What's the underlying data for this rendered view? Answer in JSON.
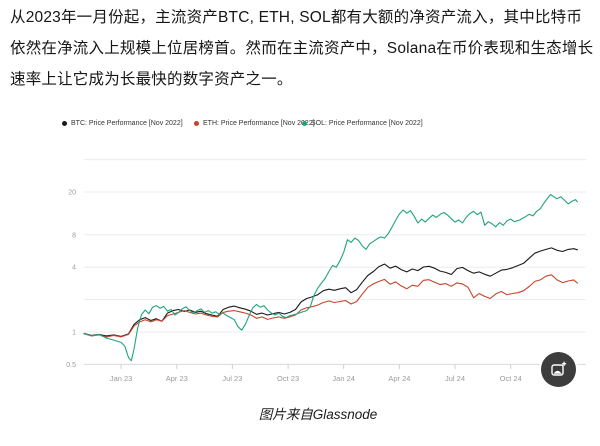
{
  "article": {
    "text": "从2023年一月份起，主流资产BTC, ETH, SOL都有大额的净资产流入，其中比特币依然在净流入上规模上位居榜首。然而在主流资产中，Solana在币价表现和生态增长速率上让它成为长最快的数字资产之一。"
  },
  "caption": {
    "text": "图片来自Glassnode"
  },
  "image_button": {
    "tooltip": "preview image"
  },
  "chart_data": {
    "type": "line",
    "title": "",
    "xlabel": "",
    "ylabel": "",
    "y_scale": "log",
    "ylim": [
      0.45,
      45
    ],
    "grid": true,
    "legend_position": "top",
    "x_unit": "months since Nov 2022",
    "y_gridlines": [
      40,
      20,
      8,
      4,
      2,
      1,
      0.5
    ],
    "y_ticks": [
      {
        "v": 20,
        "label": "20"
      },
      {
        "v": 8,
        "label": "8"
      },
      {
        "v": 4,
        "label": "4"
      },
      {
        "v": 1,
        "label": "1"
      },
      {
        "v": 0.5,
        "label": "0.5"
      }
    ],
    "x_ticks": [
      {
        "m": 2,
        "label": "Jan 23"
      },
      {
        "m": 5,
        "label": "Apr 23"
      },
      {
        "m": 8,
        "label": "Jul 23"
      },
      {
        "m": 11,
        "label": "Oct 23"
      },
      {
        "m": 14,
        "label": "Jan 24"
      },
      {
        "m": 17,
        "label": "Apr 24"
      },
      {
        "m": 20,
        "label": "Jul 24"
      },
      {
        "m": 23,
        "label": "Oct 24"
      }
    ],
    "series": [
      {
        "id": "btc",
        "legend_label": "BTC: Price Performance [Nov 2022]",
        "color": "#1a1a1a",
        "points": [
          [
            0,
            0.97
          ],
          [
            0.4,
            0.93
          ],
          [
            0.8,
            0.95
          ],
          [
            1.2,
            0.92
          ],
          [
            1.6,
            0.94
          ],
          [
            2,
            0.91
          ],
          [
            2.4,
            0.96
          ],
          [
            2.7,
            1.18
          ],
          [
            3,
            1.3
          ],
          [
            3.3,
            1.36
          ],
          [
            3.6,
            1.28
          ],
          [
            3.9,
            1.33
          ],
          [
            4.2,
            1.26
          ],
          [
            4.5,
            1.5
          ],
          [
            4.8,
            1.58
          ],
          [
            5.1,
            1.62
          ],
          [
            5.4,
            1.55
          ],
          [
            5.7,
            1.6
          ],
          [
            6,
            1.52
          ],
          [
            6.3,
            1.56
          ],
          [
            6.6,
            1.48
          ],
          [
            6.9,
            1.44
          ],
          [
            7.2,
            1.4
          ],
          [
            7.5,
            1.62
          ],
          [
            7.8,
            1.7
          ],
          [
            8.1,
            1.74
          ],
          [
            8.4,
            1.68
          ],
          [
            8.7,
            1.63
          ],
          [
            9,
            1.56
          ],
          [
            9.3,
            1.46
          ],
          [
            9.6,
            1.5
          ],
          [
            9.9,
            1.44
          ],
          [
            10.2,
            1.48
          ],
          [
            10.5,
            1.52
          ],
          [
            10.8,
            1.47
          ],
          [
            11.1,
            1.52
          ],
          [
            11.4,
            1.62
          ],
          [
            11.7,
            1.9
          ],
          [
            12,
            2.05
          ],
          [
            12.3,
            2.12
          ],
          [
            12.6,
            2.22
          ],
          [
            12.9,
            2.42
          ],
          [
            13.2,
            2.5
          ],
          [
            13.5,
            2.44
          ],
          [
            13.8,
            2.52
          ],
          [
            14.1,
            2.58
          ],
          [
            14.4,
            2.32
          ],
          [
            14.7,
            2.48
          ],
          [
            15,
            2.9
          ],
          [
            15.3,
            3.35
          ],
          [
            15.6,
            3.65
          ],
          [
            15.9,
            4.05
          ],
          [
            16.2,
            4.28
          ],
          [
            16.5,
            3.92
          ],
          [
            16.8,
            4.1
          ],
          [
            17.1,
            3.8
          ],
          [
            17.4,
            3.62
          ],
          [
            17.7,
            3.85
          ],
          [
            18,
            3.72
          ],
          [
            18.3,
            4.02
          ],
          [
            18.6,
            4.08
          ],
          [
            18.9,
            3.92
          ],
          [
            19.2,
            3.68
          ],
          [
            19.5,
            3.58
          ],
          [
            19.8,
            3.42
          ],
          [
            20.1,
            3.88
          ],
          [
            20.4,
            3.98
          ],
          [
            20.7,
            3.72
          ],
          [
            21,
            3.52
          ],
          [
            21.3,
            3.62
          ],
          [
            21.6,
            3.44
          ],
          [
            21.9,
            3.3
          ],
          [
            22.2,
            3.52
          ],
          [
            22.5,
            3.76
          ],
          [
            22.8,
            3.82
          ],
          [
            23.1,
            3.95
          ],
          [
            23.4,
            4.15
          ],
          [
            23.7,
            4.35
          ],
          [
            24,
            4.85
          ],
          [
            24.3,
            5.4
          ],
          [
            24.6,
            5.65
          ],
          [
            24.9,
            5.85
          ],
          [
            25.2,
            6.05
          ],
          [
            25.5,
            5.75
          ],
          [
            25.8,
            5.6
          ],
          [
            26.1,
            5.85
          ],
          [
            26.4,
            5.95
          ],
          [
            26.6,
            5.8
          ]
        ]
      },
      {
        "id": "eth",
        "legend_label": "ETH: Price Performance [Nov 2022]",
        "color": "#c7442c",
        "points": [
          [
            0,
            0.97
          ],
          [
            0.4,
            0.92
          ],
          [
            0.8,
            0.94
          ],
          [
            1.2,
            0.9
          ],
          [
            1.6,
            0.93
          ],
          [
            2,
            0.9
          ],
          [
            2.4,
            0.95
          ],
          [
            2.7,
            1.14
          ],
          [
            3,
            1.24
          ],
          [
            3.3,
            1.3
          ],
          [
            3.6,
            1.24
          ],
          [
            3.9,
            1.3
          ],
          [
            4.2,
            1.26
          ],
          [
            4.5,
            1.42
          ],
          [
            4.8,
            1.47
          ],
          [
            5.1,
            1.52
          ],
          [
            5.4,
            1.58
          ],
          [
            5.7,
            1.52
          ],
          [
            6,
            1.47
          ],
          [
            6.3,
            1.5
          ],
          [
            6.6,
            1.44
          ],
          [
            6.9,
            1.4
          ],
          [
            7.2,
            1.38
          ],
          [
            7.5,
            1.52
          ],
          [
            7.8,
            1.56
          ],
          [
            8.1,
            1.58
          ],
          [
            8.4,
            1.54
          ],
          [
            8.7,
            1.5
          ],
          [
            9,
            1.44
          ],
          [
            9.3,
            1.34
          ],
          [
            9.6,
            1.38
          ],
          [
            9.9,
            1.31
          ],
          [
            10.2,
            1.35
          ],
          [
            10.5,
            1.38
          ],
          [
            10.8,
            1.34
          ],
          [
            11.1,
            1.38
          ],
          [
            11.4,
            1.44
          ],
          [
            11.7,
            1.6
          ],
          [
            12,
            1.68
          ],
          [
            12.3,
            1.72
          ],
          [
            12.6,
            1.78
          ],
          [
            12.9,
            1.88
          ],
          [
            13.2,
            1.94
          ],
          [
            13.5,
            1.88
          ],
          [
            13.8,
            1.92
          ],
          [
            14.1,
            1.96
          ],
          [
            14.4,
            1.82
          ],
          [
            14.7,
            1.92
          ],
          [
            15,
            2.25
          ],
          [
            15.3,
            2.6
          ],
          [
            15.6,
            2.8
          ],
          [
            15.9,
            2.95
          ],
          [
            16.2,
            3.08
          ],
          [
            16.5,
            2.78
          ],
          [
            16.8,
            2.92
          ],
          [
            17.1,
            2.68
          ],
          [
            17.4,
            2.52
          ],
          [
            17.7,
            2.72
          ],
          [
            18,
            2.66
          ],
          [
            18.3,
            3.02
          ],
          [
            18.6,
            3.06
          ],
          [
            18.9,
            2.9
          ],
          [
            19.2,
            2.76
          ],
          [
            19.5,
            2.82
          ],
          [
            19.8,
            2.66
          ],
          [
            20.1,
            2.86
          ],
          [
            20.4,
            2.8
          ],
          [
            20.7,
            2.6
          ],
          [
            21,
            2.08
          ],
          [
            21.3,
            2.28
          ],
          [
            21.6,
            2.14
          ],
          [
            21.9,
            2.05
          ],
          [
            22.2,
            2.26
          ],
          [
            22.5,
            2.38
          ],
          [
            22.8,
            2.22
          ],
          [
            23.1,
            2.28
          ],
          [
            23.4,
            2.32
          ],
          [
            23.7,
            2.42
          ],
          [
            24,
            2.65
          ],
          [
            24.3,
            2.95
          ],
          [
            24.6,
            3.05
          ],
          [
            24.9,
            3.3
          ],
          [
            25.2,
            3.4
          ],
          [
            25.5,
            3.05
          ],
          [
            25.8,
            2.88
          ],
          [
            26.1,
            2.98
          ],
          [
            26.4,
            3.05
          ],
          [
            26.6,
            2.85
          ]
        ]
      },
      {
        "id": "sol",
        "legend_label": "SOL: Price Performance [Nov 2022]",
        "color": "#1ea47b",
        "points": [
          [
            0,
            0.96
          ],
          [
            0.4,
            0.92
          ],
          [
            0.8,
            0.95
          ],
          [
            1.2,
            0.88
          ],
          [
            1.6,
            0.84
          ],
          [
            2,
            0.8
          ],
          [
            2.2,
            0.74
          ],
          [
            2.4,
            0.58
          ],
          [
            2.55,
            0.54
          ],
          [
            2.7,
            0.7
          ],
          [
            2.9,
            1.1
          ],
          [
            3.1,
            1.45
          ],
          [
            3.3,
            1.6
          ],
          [
            3.5,
            1.48
          ],
          [
            3.7,
            1.7
          ],
          [
            3.9,
            1.76
          ],
          [
            4.1,
            1.66
          ],
          [
            4.3,
            1.73
          ],
          [
            4.5,
            1.56
          ],
          [
            4.7,
            1.62
          ],
          [
            4.9,
            1.44
          ],
          [
            5.1,
            1.52
          ],
          [
            5.3,
            1.64
          ],
          [
            5.5,
            1.72
          ],
          [
            5.7,
            1.58
          ],
          [
            5.9,
            1.5
          ],
          [
            6.1,
            1.58
          ],
          [
            6.3,
            1.64
          ],
          [
            6.5,
            1.52
          ],
          [
            6.7,
            1.58
          ],
          [
            6.9,
            1.5
          ],
          [
            7.1,
            1.54
          ],
          [
            7.3,
            1.46
          ],
          [
            7.5,
            1.5
          ],
          [
            7.7,
            1.42
          ],
          [
            7.9,
            1.36
          ],
          [
            8.1,
            1.3
          ],
          [
            8.3,
            1.12
          ],
          [
            8.5,
            1.04
          ],
          [
            8.7,
            1.18
          ],
          [
            8.9,
            1.42
          ],
          [
            9.1,
            1.68
          ],
          [
            9.3,
            1.8
          ],
          [
            9.5,
            1.7
          ],
          [
            9.7,
            1.76
          ],
          [
            9.9,
            1.6
          ],
          [
            10.1,
            1.5
          ],
          [
            10.3,
            1.44
          ],
          [
            10.5,
            1.5
          ],
          [
            10.7,
            1.4
          ],
          [
            10.9,
            1.36
          ],
          [
            11.1,
            1.42
          ],
          [
            11.4,
            1.46
          ],
          [
            11.7,
            1.52
          ],
          [
            12,
            1.58
          ],
          [
            12.2,
            1.72
          ],
          [
            12.4,
            2.2
          ],
          [
            12.6,
            2.55
          ],
          [
            12.8,
            2.85
          ],
          [
            13,
            3.15
          ],
          [
            13.2,
            3.65
          ],
          [
            13.4,
            4.15
          ],
          [
            13.6,
            4
          ],
          [
            13.8,
            4.6
          ],
          [
            14,
            5.5
          ],
          [
            14.2,
            7.2
          ],
          [
            14.4,
            6.8
          ],
          [
            14.6,
            7.45
          ],
          [
            14.8,
            7.1
          ],
          [
            15,
            6.3
          ],
          [
            15.2,
            5.85
          ],
          [
            15.4,
            6.6
          ],
          [
            15.6,
            6.95
          ],
          [
            15.8,
            7.35
          ],
          [
            16,
            7.65
          ],
          [
            16.2,
            7.45
          ],
          [
            16.4,
            8.2
          ],
          [
            16.6,
            9.4
          ],
          [
            16.8,
            10.9
          ],
          [
            17,
            12.5
          ],
          [
            17.2,
            13.6
          ],
          [
            17.4,
            12.7
          ],
          [
            17.6,
            13.4
          ],
          [
            17.8,
            11.9
          ],
          [
            18,
            10.3
          ],
          [
            18.2,
            11.2
          ],
          [
            18.4,
            10.5
          ],
          [
            18.6,
            11.4
          ],
          [
            18.8,
            12.2
          ],
          [
            19,
            11.6
          ],
          [
            19.2,
            12.4
          ],
          [
            19.4,
            12.9
          ],
          [
            19.6,
            12.2
          ],
          [
            19.8,
            11.3
          ],
          [
            20,
            10.5
          ],
          [
            20.2,
            11
          ],
          [
            20.4,
            10.3
          ],
          [
            20.6,
            11.6
          ],
          [
            20.8,
            12.6
          ],
          [
            21,
            13.2
          ],
          [
            21.2,
            12.3
          ],
          [
            21.4,
            13
          ],
          [
            21.6,
            9.8
          ],
          [
            21.8,
            10.6
          ],
          [
            22,
            10.1
          ],
          [
            22.2,
            9.5
          ],
          [
            22.4,
            10.4
          ],
          [
            22.6,
            9.8
          ],
          [
            22.8,
            10.8
          ],
          [
            23,
            11.2
          ],
          [
            23.2,
            10.6
          ],
          [
            23.5,
            11
          ],
          [
            23.8,
            11.8
          ],
          [
            24,
            12.4
          ],
          [
            24.2,
            12
          ],
          [
            24.4,
            13.2
          ],
          [
            24.6,
            14
          ],
          [
            24.8,
            15.8
          ],
          [
            25,
            17.6
          ],
          [
            25.15,
            19
          ],
          [
            25.3,
            18.2
          ],
          [
            25.5,
            17.3
          ],
          [
            25.7,
            18.1
          ],
          [
            25.9,
            16.8
          ],
          [
            26.1,
            15.5
          ],
          [
            26.3,
            16.4
          ],
          [
            26.5,
            17
          ],
          [
            26.6,
            16.2
          ]
        ]
      }
    ]
  }
}
